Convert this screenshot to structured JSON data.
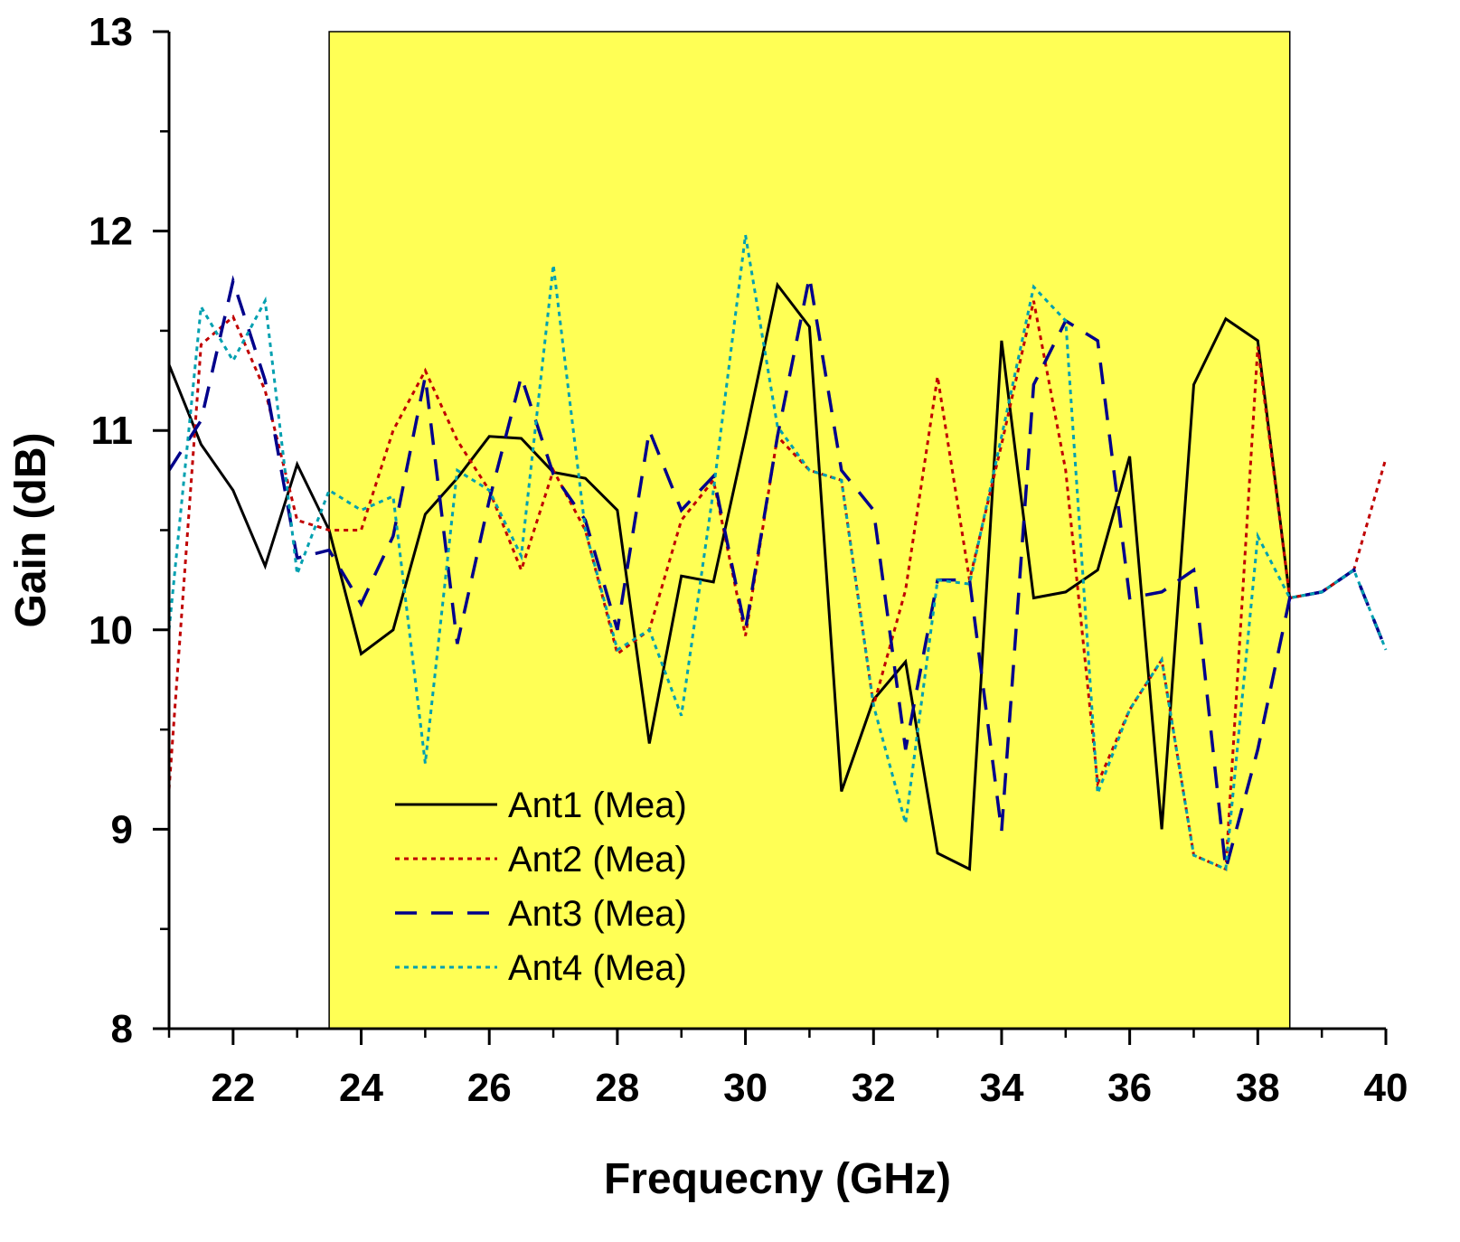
{
  "chart_data": {
    "type": "line",
    "title": "",
    "xlabel": "Frequecny (GHz)",
    "ylabel": "Gain (dB)",
    "xlim": [
      21,
      40
    ],
    "ylim": [
      8,
      13
    ],
    "x_ticks": [
      22,
      24,
      26,
      28,
      30,
      32,
      34,
      36,
      38,
      40
    ],
    "y_ticks": [
      8,
      9,
      10,
      11,
      12,
      13
    ],
    "highlight_band": {
      "x_start": 23.5,
      "x_end": 38.5,
      "color": "#FFFF55"
    },
    "grid": false,
    "legend_position": "bottom-left",
    "x": [
      21,
      21.5,
      22,
      22.5,
      23,
      23.5,
      24,
      24.5,
      25,
      25.5,
      26,
      26.5,
      27,
      27.5,
      28,
      28.5,
      29,
      29.5,
      30,
      30.5,
      31,
      31.5,
      32,
      32.5,
      33,
      33.5,
      34,
      34.5,
      35,
      35.5,
      36,
      36.5,
      37,
      37.5,
      38,
      38.5,
      39,
      39.5,
      40
    ],
    "series": [
      {
        "name": "Ant1 (Mea)",
        "color": "#000000",
        "dash": "solid",
        "values": [
          11.33,
          10.93,
          10.7,
          10.32,
          10.83,
          10.5,
          9.88,
          10.0,
          10.58,
          10.76,
          10.97,
          10.96,
          10.79,
          10.76,
          10.6,
          9.43,
          10.27,
          10.24,
          10.97,
          11.73,
          11.52,
          9.19,
          9.65,
          9.84,
          8.88,
          8.8,
          11.45,
          10.16,
          10.19,
          10.3,
          10.87,
          9.0,
          11.23,
          11.56,
          11.45,
          10.16,
          10.19,
          10.3,
          null
        ]
      },
      {
        "name": "Ant2 (Mea)",
        "color": "#C00000",
        "dash": "dotted",
        "values": [
          9.2,
          11.43,
          11.57,
          11.2,
          10.55,
          10.5,
          10.5,
          11.0,
          11.3,
          10.95,
          10.7,
          10.3,
          10.8,
          10.5,
          9.88,
          10.0,
          10.55,
          10.75,
          9.97,
          10.97,
          10.8,
          10.75,
          9.62,
          10.2,
          11.27,
          10.25,
          10.93,
          11.65,
          10.8,
          9.23,
          9.6,
          9.85,
          8.87,
          8.8,
          11.42,
          10.16,
          10.19,
          10.3,
          10.86
        ]
      },
      {
        "name": "Ant3 (Mea)",
        "color": "#00008B",
        "dash": "dashed",
        "values": [
          10.8,
          11.05,
          11.75,
          11.25,
          10.36,
          10.4,
          10.13,
          10.47,
          11.27,
          9.93,
          10.65,
          11.27,
          10.78,
          10.55,
          10.0,
          11.0,
          10.6,
          10.77,
          10.0,
          10.97,
          11.77,
          10.8,
          10.6,
          9.4,
          10.25,
          10.25,
          8.99,
          11.23,
          11.55,
          11.45,
          10.16,
          10.19,
          10.3,
          8.8,
          9.4,
          10.16,
          10.19,
          10.3,
          9.9
        ]
      },
      {
        "name": "Ant4 (Mea)",
        "color": "#00A0B0",
        "dash": "dotted",
        "values": [
          10.0,
          11.62,
          11.35,
          11.65,
          10.28,
          10.7,
          10.6,
          10.67,
          9.33,
          10.8,
          10.7,
          10.37,
          11.83,
          10.5,
          9.9,
          10.0,
          9.57,
          10.7,
          11.98,
          11.02,
          10.8,
          10.75,
          9.62,
          9.03,
          10.25,
          10.23,
          10.97,
          11.72,
          11.55,
          9.18,
          9.6,
          9.85,
          8.87,
          8.8,
          10.47,
          10.16,
          10.19,
          10.3,
          9.9
        ]
      }
    ]
  }
}
